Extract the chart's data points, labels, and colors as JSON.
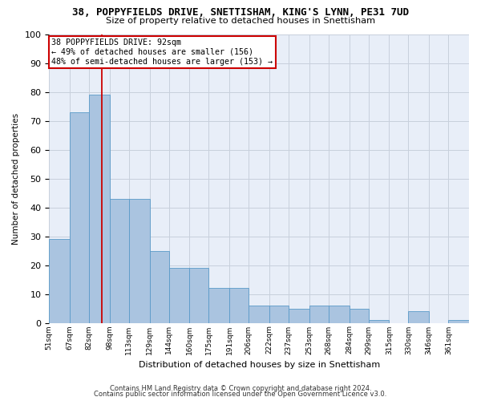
{
  "title": "38, POPPYFIELDS DRIVE, SNETTISHAM, KING'S LYNN, PE31 7UD",
  "subtitle": "Size of property relative to detached houses in Snettisham",
  "xlabel": "Distribution of detached houses by size in Snettisham",
  "ylabel": "Number of detached properties",
  "bin_edges": [
    51,
    67,
    82,
    98,
    113,
    129,
    144,
    160,
    175,
    191,
    206,
    222,
    237,
    253,
    268,
    284,
    299,
    315,
    330,
    346,
    361,
    377
  ],
  "bar_heights": [
    29,
    73,
    79,
    43,
    43,
    25,
    19,
    19,
    12,
    12,
    6,
    6,
    5,
    6,
    6,
    5,
    1,
    0,
    4,
    0,
    1
  ],
  "bar_color": "#aac4e0",
  "bar_edge_color": "#5a9ac8",
  "vline_x": 92,
  "vline_color": "#cc0000",
  "annotation_text": "38 POPPYFIELDS DRIVE: 92sqm\n← 49% of detached houses are smaller (156)\n48% of semi-detached houses are larger (153) →",
  "annotation_box_color": "#ffffff",
  "annotation_box_edge_color": "#cc0000",
  "ylim": [
    0,
    100
  ],
  "yticks": [
    0,
    10,
    20,
    30,
    40,
    50,
    60,
    70,
    80,
    90,
    100
  ],
  "grid_color": "#c8d0dc",
  "background_color": "#e8eef8",
  "footer1": "Contains HM Land Registry data © Crown copyright and database right 2024.",
  "footer2": "Contains public sector information licensed under the Open Government Licence v3.0."
}
